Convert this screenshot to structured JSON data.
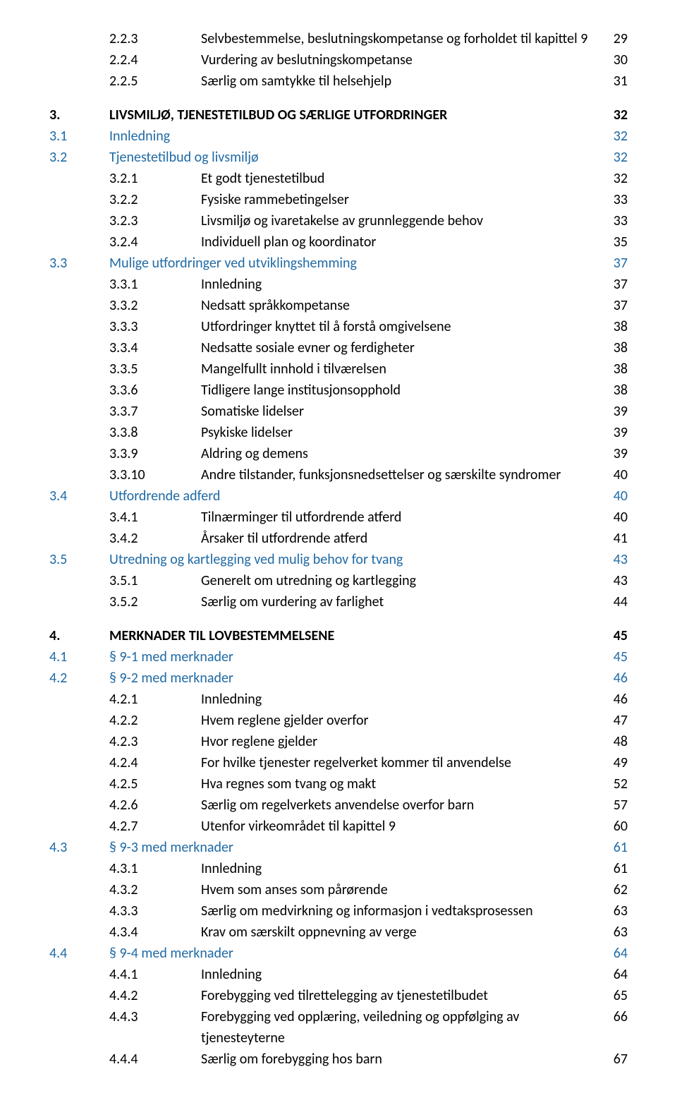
{
  "colors": {
    "text_black": "#000000",
    "text_link": "#1f6aa5"
  },
  "toc": [
    {
      "level": 3,
      "num": "2.2.3",
      "title": "Selvbestemmelse, beslutningskompetanse og forholdet til kapittel 9",
      "page": "29",
      "style": "black"
    },
    {
      "level": 3,
      "num": "2.2.4",
      "title": "Vurdering av beslutningskompetanse",
      "page": "30",
      "style": "black"
    },
    {
      "level": 3,
      "num": "2.2.5",
      "title": "Særlig om samtykke til helsehjelp",
      "page": "31",
      "style": "black"
    },
    {
      "type": "spacer"
    },
    {
      "level": 1,
      "num": "3.",
      "title": "LIVSMILJØ, TJENESTETILBUD OG SÆRLIGE UTFORDRINGER",
      "page": "32",
      "style": "black-bold"
    },
    {
      "level": 2,
      "num": "3.1",
      "title": "Innledning",
      "page": "32",
      "style": "link"
    },
    {
      "level": 2,
      "num": "3.2",
      "title": "Tjenestetilbud og livsmiljø",
      "page": "32",
      "style": "link"
    },
    {
      "level": 3,
      "num": "3.2.1",
      "title": "Et godt tjenestetilbud",
      "page": "32",
      "style": "black"
    },
    {
      "level": 3,
      "num": "3.2.2",
      "title": "Fysiske rammebetingelser",
      "page": "33",
      "style": "black"
    },
    {
      "level": 3,
      "num": "3.2.3",
      "title": "Livsmiljø og ivaretakelse av grunnleggende behov",
      "page": "33",
      "style": "black"
    },
    {
      "level": 3,
      "num": "3.2.4",
      "title": "Individuell plan og koordinator",
      "page": "35",
      "style": "black"
    },
    {
      "level": 2,
      "num": "3.3",
      "title": "Mulige utfordringer ved utviklingshemming",
      "page": "37",
      "style": "link"
    },
    {
      "level": 3,
      "num": "3.3.1",
      "title": "Innledning",
      "page": "37",
      "style": "black"
    },
    {
      "level": 3,
      "num": "3.3.2",
      "title": "Nedsatt språkkompetanse",
      "page": "37",
      "style": "black"
    },
    {
      "level": 3,
      "num": "3.3.3",
      "title": "Utfordringer knyttet til å forstå omgivelsene",
      "page": "38",
      "style": "black"
    },
    {
      "level": 3,
      "num": "3.3.4",
      "title": "Nedsatte sosiale evner og ferdigheter",
      "page": "38",
      "style": "black"
    },
    {
      "level": 3,
      "num": "3.3.5",
      "title": "Mangelfullt innhold i tilværelsen",
      "page": "38",
      "style": "black"
    },
    {
      "level": 3,
      "num": "3.3.6",
      "title": "Tidligere lange institusjonsopphold",
      "page": "38",
      "style": "black"
    },
    {
      "level": 3,
      "num": "3.3.7",
      "title": "Somatiske lidelser",
      "page": "39",
      "style": "black"
    },
    {
      "level": 3,
      "num": "3.3.8",
      "title": "Psykiske lidelser",
      "page": "39",
      "style": "black"
    },
    {
      "level": 3,
      "num": "3.3.9",
      "title": "Aldring og demens",
      "page": "39",
      "style": "black"
    },
    {
      "level": 3,
      "num": "3.3.10",
      "title": "Andre tilstander, funksjonsnedsettelser og særskilte syndromer",
      "page": "40",
      "style": "black"
    },
    {
      "level": 2,
      "num": "3.4",
      "title": "Utfordrende adferd",
      "page": "40",
      "style": "link"
    },
    {
      "level": 3,
      "num": "3.4.1",
      "title": "Tilnærminger til utfordrende atferd",
      "page": "40",
      "style": "black"
    },
    {
      "level": 3,
      "num": "3.4.2",
      "title": "Årsaker til utfordrende atferd",
      "page": "41",
      "style": "black"
    },
    {
      "level": 2,
      "num": "3.5",
      "title": "Utredning og kartlegging ved mulig behov for tvang",
      "page": "43",
      "style": "link"
    },
    {
      "level": 3,
      "num": "3.5.1",
      "title": "Generelt om utredning og kartlegging",
      "page": "43",
      "style": "black"
    },
    {
      "level": 3,
      "num": "3.5.2",
      "title": "Særlig om vurdering av farlighet",
      "page": "44",
      "style": "black"
    },
    {
      "type": "spacer"
    },
    {
      "level": 1,
      "num": "4.",
      "title": "MERKNADER TIL LOVBESTEMMELSENE",
      "page": "45",
      "style": "black-bold"
    },
    {
      "level": 2,
      "num": "4.1",
      "title": "§ 9-1 med merknader",
      "page": "45",
      "style": "link"
    },
    {
      "level": 2,
      "num": "4.2",
      "title": "§ 9-2 med merknader",
      "page": "46",
      "style": "link"
    },
    {
      "level": 3,
      "num": "4.2.1",
      "title": "Innledning",
      "page": "46",
      "style": "black"
    },
    {
      "level": 3,
      "num": "4.2.2",
      "title": "Hvem reglene gjelder overfor",
      "page": "47",
      "style": "black"
    },
    {
      "level": 3,
      "num": "4.2.3",
      "title": "Hvor reglene gjelder",
      "page": "48",
      "style": "black"
    },
    {
      "level": 3,
      "num": "4.2.4",
      "title": "For hvilke tjenester regelverket kommer til anvendelse",
      "page": "49",
      "style": "black"
    },
    {
      "level": 3,
      "num": "4.2.5",
      "title": "Hva regnes som tvang og makt",
      "page": "52",
      "style": "black"
    },
    {
      "level": 3,
      "num": "4.2.6",
      "title": "Særlig om regelverkets anvendelse overfor barn",
      "page": "57",
      "style": "black"
    },
    {
      "level": 3,
      "num": "4.2.7",
      "title": "Utenfor virkeområdet til kapittel 9",
      "page": "60",
      "style": "black"
    },
    {
      "level": 2,
      "num": "4.3",
      "title": "§ 9-3 med merknader",
      "page": "61",
      "style": "link"
    },
    {
      "level": 3,
      "num": "4.3.1",
      "title": "Innledning",
      "page": "61",
      "style": "black"
    },
    {
      "level": 3,
      "num": "4.3.2",
      "title": "Hvem som anses som pårørende",
      "page": "62",
      "style": "black"
    },
    {
      "level": 3,
      "num": "4.3.3",
      "title": "Særlig om medvirkning og informasjon i vedtaksprosessen",
      "page": "63",
      "style": "black"
    },
    {
      "level": 3,
      "num": "4.3.4",
      "title": "Krav om særskilt oppnevning av verge",
      "page": "63",
      "style": "black"
    },
    {
      "level": 2,
      "num": "4.4",
      "title": "§ 9-4 med merknader",
      "page": "64",
      "style": "link"
    },
    {
      "level": 3,
      "num": "4.4.1",
      "title": "Innledning",
      "page": "64",
      "style": "black"
    },
    {
      "level": 3,
      "num": "4.4.2",
      "title": "Forebygging ved tilrettelegging av tjenestetilbudet",
      "page": "65",
      "style": "black"
    },
    {
      "level": 3,
      "num": "4.4.3",
      "title": "Forebygging ved opplæring, veiledning og oppfølging av tjenesteyterne",
      "page": "66",
      "style": "black"
    },
    {
      "level": 3,
      "num": "4.4.4",
      "title": "Særlig om forebygging hos barn",
      "page": "67",
      "style": "black"
    }
  ]
}
